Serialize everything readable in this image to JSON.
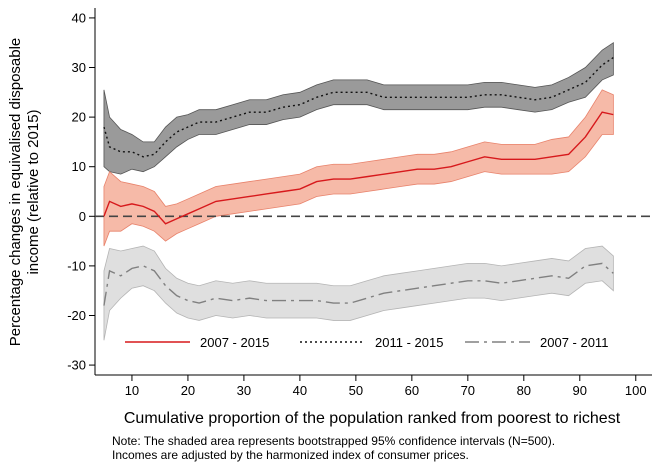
{
  "chart_data": {
    "type": "line",
    "ylabel": [
      "Percentage changes in equivalised disposable",
      "income (relative to 2015)"
    ],
    "xlabel": "Cumulative proportion of the population ranked from poorest to richest",
    "note": [
      "Note: The shaded area represents bootstrapped 95% confidence intervals (N=500).",
      "Incomes are adjusted by the harmonized index of consumer prices."
    ],
    "x": [
      5,
      6,
      8,
      10,
      12,
      14,
      16,
      18,
      20,
      22,
      25,
      28,
      31,
      34,
      37,
      40,
      43,
      46,
      49,
      52,
      55,
      58,
      61,
      64,
      67,
      70,
      73,
      76,
      79,
      82,
      85,
      88,
      91,
      94,
      96
    ],
    "series": [
      {
        "name": "2007 - 2015",
        "color": "#d7191c",
        "band_color": "#f5b39e",
        "band_edge": "#e8826b",
        "dash": "solid",
        "values": [
          0,
          3,
          2,
          2.5,
          2,
          1,
          -1.5,
          -0.5,
          0.5,
          1.5,
          3,
          3.5,
          4,
          4.5,
          5,
          5.5,
          7,
          7.5,
          7.5,
          8,
          8.5,
          9,
          9.5,
          9.5,
          10,
          11,
          12,
          11.5,
          11.5,
          11.5,
          12,
          12.5,
          16,
          21,
          20.5
        ],
        "lower": [
          -6,
          -3,
          -3,
          -1.5,
          -2,
          -3,
          -5,
          -3.5,
          -2.5,
          -1.5,
          0,
          0.5,
          1,
          1.5,
          2,
          2.5,
          4,
          4.5,
          4.5,
          5,
          5.5,
          6,
          6.5,
          6.5,
          7,
          8,
          9,
          8.5,
          8.5,
          8.5,
          8.5,
          9,
          12,
          16.5,
          16.5
        ],
        "upper": [
          6,
          9,
          7,
          6.5,
          6,
          5,
          2,
          2.5,
          3.5,
          4.5,
          6,
          6.5,
          7,
          7.5,
          8,
          8.5,
          10,
          10.5,
          10.5,
          11,
          11.5,
          12,
          12.5,
          12.5,
          13,
          14,
          15,
          14.5,
          14.5,
          14.5,
          15.5,
          16,
          20,
          25.5,
          24.5
        ]
      },
      {
        "name": "2011 - 2015",
        "color": "#111111",
        "band_color": "#8f8f8f",
        "band_edge": "#555555",
        "dash": "dotted",
        "values": [
          18,
          14,
          13,
          13,
          12,
          12.5,
          15,
          17,
          18,
          19,
          19,
          20,
          21,
          21,
          22,
          22.5,
          24,
          25,
          25,
          25,
          24,
          24,
          24,
          24,
          24,
          24,
          24.5,
          24.5,
          24,
          23.5,
          24,
          25.5,
          27,
          30.5,
          32
        ],
        "lower": [
          10,
          9,
          8.5,
          9.5,
          9,
          10,
          12,
          14,
          15.5,
          16.5,
          16.5,
          17.5,
          18.5,
          18.5,
          19.5,
          20,
          21.5,
          22.5,
          22.5,
          22.5,
          21.5,
          21.5,
          21.5,
          21.5,
          21.5,
          21.5,
          22,
          22,
          21.5,
          21,
          21.5,
          23,
          24,
          27.5,
          28.5
        ],
        "upper": [
          25.5,
          20,
          17.5,
          16.5,
          15,
          15,
          18,
          20,
          20.5,
          21.5,
          21.5,
          22.5,
          23.5,
          23.5,
          24.5,
          25,
          26.5,
          27.5,
          27.5,
          27.5,
          26.5,
          26.5,
          26.5,
          26.5,
          26.5,
          26.5,
          27,
          27,
          26.5,
          26,
          26.5,
          28,
          30,
          33.5,
          35
        ]
      },
      {
        "name": "2007 - 2011",
        "color": "#808080",
        "band_color": "#dcdcdc",
        "band_edge": "#b4b4b4",
        "dash": "dashdot",
        "values": [
          -18,
          -11,
          -12,
          -10.5,
          -10,
          -11,
          -14,
          -16,
          -17,
          -17.5,
          -16.5,
          -17,
          -16.5,
          -17,
          -17,
          -17,
          -17,
          -17.5,
          -17.5,
          -16.5,
          -15.5,
          -15,
          -14.5,
          -14,
          -13.5,
          -13,
          -13,
          -13.5,
          -13,
          -12.5,
          -12,
          -12.5,
          -10,
          -9.5,
          -11.5
        ],
        "lower": [
          -25,
          -19,
          -16.5,
          -14.5,
          -14,
          -15,
          -17.5,
          -19.5,
          -20.5,
          -21,
          -20,
          -20.5,
          -20,
          -20.5,
          -20.5,
          -20.5,
          -20.5,
          -21,
          -21,
          -20,
          -19,
          -18.5,
          -18,
          -17.5,
          -17,
          -16.5,
          -16.5,
          -17,
          -16.5,
          -16,
          -15.5,
          -16,
          -13.5,
          -13,
          -15
        ],
        "upper": [
          -11,
          -6.5,
          -7,
          -6.5,
          -6,
          -7,
          -10.5,
          -12.5,
          -13.5,
          -14,
          -13,
          -13.5,
          -13,
          -13.5,
          -13.5,
          -13.5,
          -13.5,
          -14,
          -14,
          -13,
          -12,
          -11.5,
          -11,
          -10.5,
          -10,
          -9.5,
          -9.5,
          -10,
          -9.5,
          -9,
          -8.5,
          -9,
          -6.5,
          -6,
          -8
        ]
      }
    ],
    "hline": 0,
    "xlim": [
      3.4,
      102.9
    ],
    "ylim": [
      -32,
      42
    ],
    "xticks": [
      10,
      20,
      30,
      40,
      50,
      60,
      70,
      80,
      90,
      100
    ],
    "yticks": [
      40,
      30,
      20,
      10,
      0,
      -10,
      -20,
      -30
    ],
    "legend": "bottom"
  }
}
